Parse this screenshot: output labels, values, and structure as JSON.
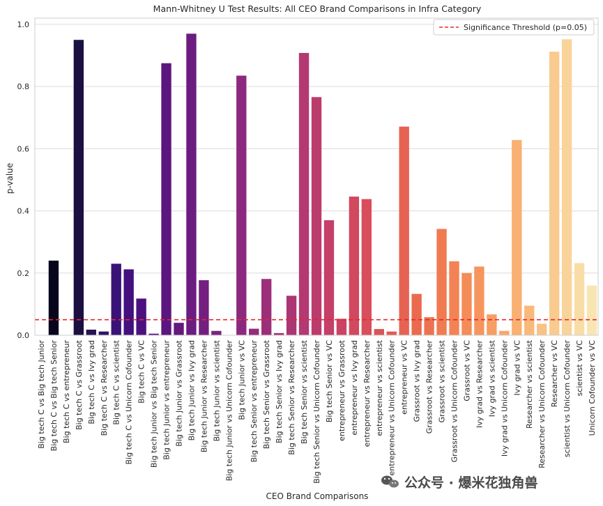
{
  "chart_data": {
    "type": "bar",
    "title": "Mann-Whitney U Test Results: All CEO Brand Comparisons in Infra Category",
    "xlabel": "CEO Brand Comparisons",
    "ylabel": "p-value",
    "ylim": [
      0,
      1.02
    ],
    "yticks": [
      0.0,
      0.2,
      0.4,
      0.6,
      0.8,
      1.0
    ],
    "ytick_labels": [
      "0.0",
      "0.2",
      "0.4",
      "0.6",
      "0.8",
      "1.0"
    ],
    "grid": true,
    "legend": {
      "placement": "top-right",
      "entries": [
        {
          "label": "Significance Threshold (p=0.05)",
          "color": "#e8262b",
          "style": "dashed"
        }
      ]
    },
    "threshold": 0.05,
    "categories": [
      "Big tech C vs Big tech Junior",
      "Big tech C vs Big tech Senior",
      "Big tech C vs entrepreneur",
      "Big tech C vs Grassroot",
      "Big tech C vs Ivy grad",
      "Big tech C vs Researcher",
      "Big tech C vs scientist",
      "Big tech C vs Unicorn Cofounder",
      "Big tech C vs VC",
      "Big tech Junior vs Big tech Senior",
      "Big tech Junior vs entrepreneur",
      "Big tech Junior vs Grassroot",
      "Big tech Junior vs Ivy grad",
      "Big tech Junior vs Researcher",
      "Big tech Junior vs scientist",
      "Big tech Junior vs Unicorn Cofounder",
      "Big tech Junior vs VC",
      "Big tech Senior vs entrepreneur",
      "Big tech Senior vs Grassroot",
      "Big tech Senior vs Ivy grad",
      "Big tech Senior vs Researcher",
      "Big tech Senior vs scientist",
      "Big tech Senior vs Unicorn Cofounder",
      "Big tech Senior vs VC",
      "entrepreneur vs Grassroot",
      "entrepreneur vs Ivy grad",
      "entrepreneur vs Researcher",
      "entrepreneur vs scientist",
      "entrepreneur vs Unicorn Cofounder",
      "entrepreneur vs VC",
      "Grassroot vs Ivy grad",
      "Grassroot vs Researcher",
      "Grassroot vs scientist",
      "Grassroot vs Unicorn Cofounder",
      "Grassroot vs VC",
      "Ivy grad vs Researcher",
      "Ivy grad vs scientist",
      "Ivy grad vs Unicorn Cofounder",
      "Ivy grad vs VC",
      "Researcher vs scientist",
      "Researcher vs Unicorn Cofounder",
      "Researcher vs VC",
      "scientist vs Unicorn Cofounder",
      "scientist vs VC",
      "Unicorn Cofounder vs VC"
    ],
    "values": [
      0.0,
      0.24,
      0.0,
      0.95,
      0.018,
      0.012,
      0.23,
      0.212,
      0.118,
      0.005,
      0.875,
      0.04,
      0.97,
      0.177,
      0.014,
      0.0,
      0.835,
      0.021,
      0.181,
      0.007,
      0.127,
      0.908,
      0.766,
      0.37,
      0.053,
      0.446,
      0.438,
      0.02,
      0.012,
      0.671,
      0.133,
      0.058,
      0.342,
      0.238,
      0.2,
      0.221,
      0.067,
      0.014,
      0.628,
      0.095,
      0.037,
      0.912,
      0.952,
      0.232,
      0.16
    ],
    "colors": [
      "#000004",
      "#07061c",
      "#110b2f",
      "#1c1042",
      "#261255",
      "#301467",
      "#3a1378",
      "#43107e",
      "#4c117f",
      "#54137f",
      "#5c167f",
      "#64197f",
      "#6c1c80",
      "#741f80",
      "#7c2380",
      "#84267f",
      "#8c297e",
      "#942c7c",
      "#9c2f7a",
      "#a43277",
      "#ac3574",
      "#b43871",
      "#bc3b6d",
      "#c43f69",
      "#cb4364",
      "#d2485f",
      "#d84e5b",
      "#dd5357",
      "#e25a54",
      "#e66252",
      "#ea6a50",
      "#ed7350",
      "#f07b51",
      "#f38354",
      "#f58c58",
      "#f6955d",
      "#f79e63",
      "#f8a76a",
      "#f9b072",
      "#f9b97b",
      "#f9c285",
      "#f9cb8f",
      "#f9d49a",
      "#f9dda6",
      "#f8e6b2"
    ]
  },
  "watermark": {
    "icon": "wechat-icon",
    "text": "公众号 · 爆米花独角兽"
  }
}
